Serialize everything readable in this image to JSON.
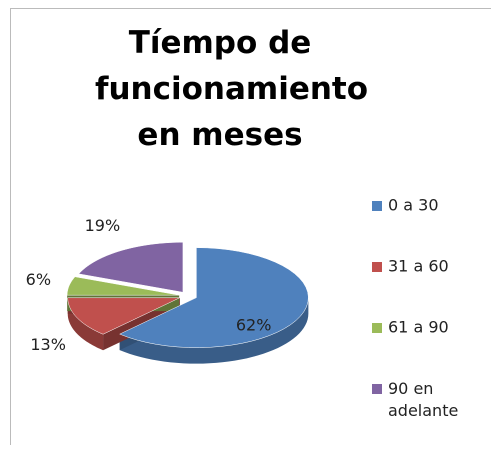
{
  "chart_data": {
    "type": "pie",
    "title": "Tíempo de funcionamiento en meses",
    "categories": [
      "0   a   30",
      "31  a   60",
      "61   a   90",
      "90 en adelante"
    ],
    "values": [
      62,
      13,
      6,
      19
    ],
    "value_labels": [
      "62%",
      "13%",
      "6%",
      "19%"
    ],
    "colors": [
      "#4f81bd",
      "#c0504d",
      "#9bbb59",
      "#8064a2"
    ],
    "legend": "right"
  }
}
